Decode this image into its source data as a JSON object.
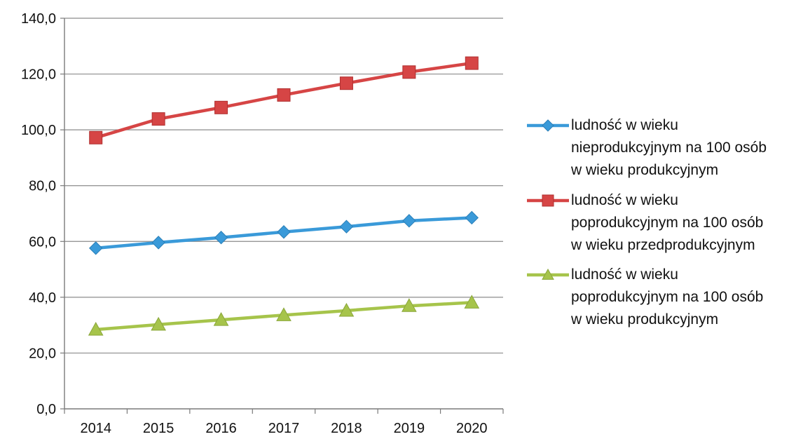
{
  "chart_data": {
    "type": "line",
    "title": "",
    "xlabel": "",
    "ylabel": "",
    "categories": [
      "2014",
      "2015",
      "2016",
      "2017",
      "2018",
      "2019",
      "2020"
    ],
    "y_ticks": [
      "0,0",
      "20,0",
      "40,0",
      "60,0",
      "80,0",
      "100,0",
      "120,0",
      "140,0"
    ],
    "ylim": [
      0,
      140
    ],
    "grid": "horizontal",
    "legend_position": "right",
    "series": [
      {
        "name": "ludność w wieku nieprodukcyjnym na 100 osób w wieku produkcyjnym",
        "legend_lines": [
          "ludność w wieku",
          "nieprodukcyjnym na 100 osób",
          "w wieku produkcyjnym"
        ],
        "marker": "diamond",
        "color": "#3a9ad9",
        "values": [
          57.6,
          59.6,
          61.4,
          63.4,
          65.3,
          67.4,
          68.5
        ]
      },
      {
        "name": "ludność w wieku poprodukcyjnym na 100 osób w wieku przedprodukcyjnym",
        "legend_lines": [
          "ludność w wieku",
          "poprodukcyjnym na 100 osób",
          "w wieku przedprodukcyjnym"
        ],
        "marker": "square",
        "color": "#d64545",
        "values": [
          97.2,
          103.9,
          108.0,
          112.5,
          116.7,
          120.7,
          123.9
        ]
      },
      {
        "name": "ludność w wieku poprodukcyjnym na 100 osób w wieku produkcyjnym",
        "legend_lines": [
          "ludność w wieku",
          "poprodukcyjnym na 100 osób",
          "w wieku produkcyjnym"
        ],
        "marker": "triangle",
        "color": "#a6c44b",
        "values": [
          28.4,
          30.2,
          31.9,
          33.6,
          35.2,
          36.9,
          38.1
        ]
      }
    ]
  }
}
